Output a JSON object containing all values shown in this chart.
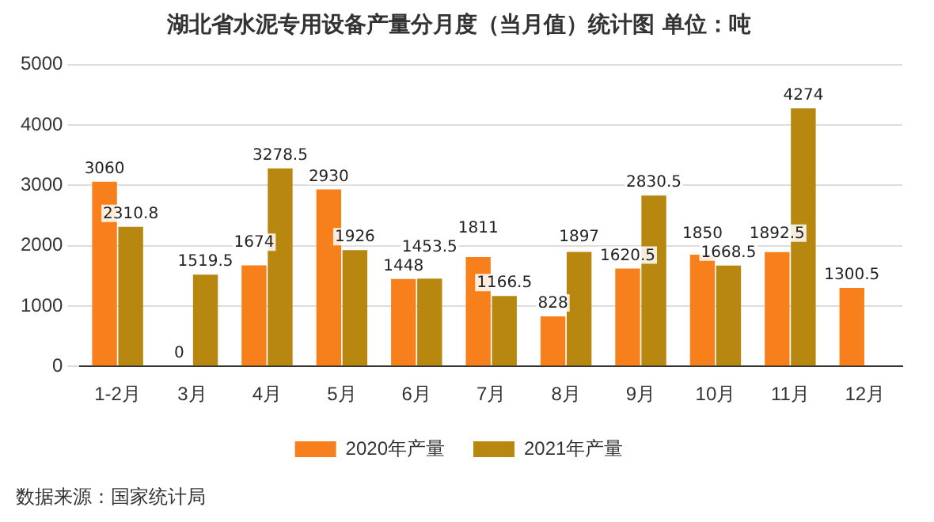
{
  "chart_data": {
    "type": "bar",
    "title": "湖北省水泥专用设备产量分月度（当月值）统计图 单位：吨",
    "categories": [
      "1-2月",
      "3月",
      "4月",
      "5月",
      "6月",
      "7月",
      "8月",
      "9月",
      "10月",
      "11月",
      "12月"
    ],
    "series": [
      {
        "name": "2020年产量",
        "color": "#f7801c",
        "values": [
          3060,
          0,
          1674,
          2930,
          1448,
          1811,
          828,
          1620.5,
          1850,
          1892.5,
          1300.5
        ]
      },
      {
        "name": "2021年产量",
        "color": "#b8870f",
        "values": [
          2310.8,
          1519.5,
          3278.5,
          1926,
          1453.5,
          1166.5,
          1897,
          2830.5,
          1668.5,
          4274,
          null
        ]
      }
    ],
    "ylim": [
      0,
      5000
    ],
    "yticks": [
      0,
      1000,
      2000,
      3000,
      4000,
      5000
    ],
    "grid": "y",
    "legend": "bottom",
    "data_labels": true,
    "annotations": [
      "数据来源：国家统计局"
    ]
  }
}
